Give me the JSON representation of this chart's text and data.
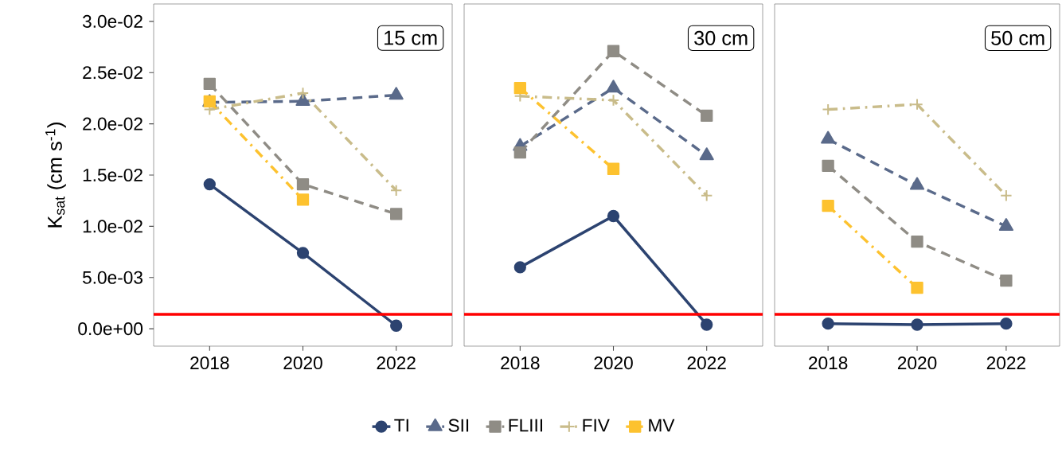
{
  "chart_data": [
    {
      "type": "line",
      "title": "15 cm",
      "ylabel": "K$_{sat}$ (cm s$^{-1}$)",
      "x": [
        2018,
        2020,
        2022
      ],
      "xlim": [
        2016.8,
        2023.2
      ],
      "xticks": [
        2018,
        2020,
        2022
      ],
      "ylim": [
        -0.0017,
        0.0317
      ],
      "yticks": [
        {
          "value": 0,
          "label": "0.0e+00"
        },
        {
          "value": 0.005,
          "label": "5.0e-03"
        },
        {
          "value": 0.01,
          "label": "1.0e-02"
        },
        {
          "value": 0.015,
          "label": "1.5e-02"
        },
        {
          "value": 0.02,
          "label": "2.0e-02"
        },
        {
          "value": 0.025,
          "label": "2.5e-02"
        },
        {
          "value": 0.03,
          "label": "3.0e-02"
        }
      ],
      "ref_lines": [
        {
          "axis": "y",
          "value": 0.0014,
          "color": "#ff0000"
        }
      ],
      "grid": false,
      "series": [
        {
          "color": "#2c4370",
          "marker": "circle",
          "line_style": "solid",
          "values": [
            0.0141,
            0.0074,
            0.0003
          ]
        },
        {
          "color": "#5a6a8a",
          "marker": "triangle",
          "line_style": "dashed",
          "values": [
            0.0221,
            0.0222,
            0.0228
          ]
        },
        {
          "color": "#8f8c85",
          "marker": "square",
          "line_style": "dashed",
          "values": [
            0.0239,
            0.0141,
            0.0112
          ]
        },
        {
          "color": "#c9bc8a",
          "marker": "cross",
          "line_style": "dashdot",
          "values": [
            0.0214,
            0.023,
            0.0135
          ]
        },
        {
          "color": "#fdc22f",
          "marker": "square",
          "line_style": "dashdot",
          "values": [
            0.0222,
            0.0126,
            null
          ]
        }
      ]
    },
    {
      "type": "line",
      "title": "30 cm",
      "x": [
        2018,
        2020,
        2022
      ],
      "xlim": [
        2016.8,
        2023.2
      ],
      "xticks": [
        2018,
        2020,
        2022
      ],
      "ylim": [
        -0.0017,
        0.0317
      ],
      "tick_labels": "x",
      "legend": "bottom",
      "yticks": [
        {
          "value": 0,
          "label": null
        },
        {
          "value": 0.005,
          "label": null
        },
        {
          "value": 0.01,
          "label": null
        },
        {
          "value": 0.015,
          "label": null
        },
        {
          "value": 0.02,
          "label": null
        },
        {
          "value": 0.025,
          "label": null
        },
        {
          "value": 0.03,
          "label": null
        }
      ],
      "ref_lines": [
        {
          "axis": "y",
          "value": 0.0014,
          "color": "#ff0000"
        }
      ],
      "grid": false,
      "series": [
        {
          "name": "TI",
          "color": "#2c4370",
          "marker": "circle",
          "line_style": "solid",
          "values": [
            0.006,
            0.011,
            0.0004
          ]
        },
        {
          "name": "SII",
          "color": "#5a6a8a",
          "marker": "triangle",
          "line_style": "dashed",
          "values": [
            0.0178,
            0.0235,
            0.0169
          ]
        },
        {
          "name": "FLIII",
          "color": "#8f8c85",
          "marker": "square",
          "line_style": "dashed",
          "values": [
            0.0172,
            0.0271,
            0.0208
          ]
        },
        {
          "name": "FIV",
          "color": "#c9bc8a",
          "marker": "cross",
          "line_style": "dashdot",
          "values": [
            0.0227,
            0.0223,
            0.013
          ]
        },
        {
          "name": "MV",
          "color": "#fdc22f",
          "marker": "square",
          "line_style": "dashdot",
          "values": [
            0.0235,
            0.0156,
            null
          ]
        }
      ]
    },
    {
      "type": "line",
      "title": "50 cm",
      "x": [
        2018,
        2020,
        2022
      ],
      "xlim": [
        2016.8,
        2023.2
      ],
      "xticks": [
        2018,
        2020,
        2022
      ],
      "ylim": [
        -0.0017,
        0.0317
      ],
      "tick_labels": "x",
      "yticks": [
        {
          "value": 0,
          "label": null
        },
        {
          "value": 0.005,
          "label": null
        },
        {
          "value": 0.01,
          "label": null
        },
        {
          "value": 0.015,
          "label": null
        },
        {
          "value": 0.02,
          "label": null
        },
        {
          "value": 0.025,
          "label": null
        },
        {
          "value": 0.03,
          "label": null
        }
      ],
      "ref_lines": [
        {
          "axis": "y",
          "value": 0.0014,
          "color": "#ff0000"
        }
      ],
      "grid": false,
      "series": [
        {
          "color": "#2c4370",
          "marker": "circle",
          "line_style": "solid",
          "values": [
            0.0005,
            0.0004,
            0.0005
          ]
        },
        {
          "color": "#5a6a8a",
          "marker": "triangle",
          "line_style": "dashed",
          "values": [
            0.0185,
            0.014,
            0.01
          ]
        },
        {
          "color": "#8f8c85",
          "marker": "square",
          "line_style": "dashed",
          "values": [
            0.0159,
            0.0085,
            0.0047
          ]
        },
        {
          "color": "#c9bc8a",
          "marker": "cross",
          "line_style": "dashdot",
          "values": [
            0.0214,
            0.0219,
            0.013
          ]
        },
        {
          "color": "#fdc22f",
          "marker": "square",
          "line_style": "dashdot",
          "values": [
            0.012,
            0.004,
            null
          ]
        }
      ]
    }
  ]
}
